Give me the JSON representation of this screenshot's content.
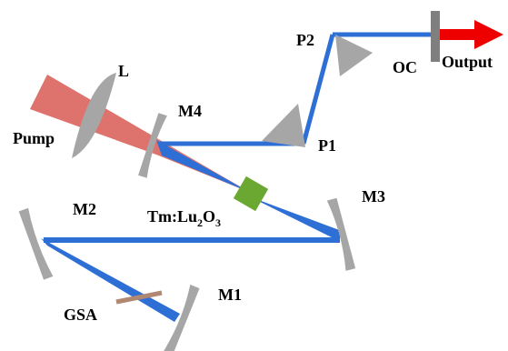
{
  "colors": {
    "beam": "#2e6fd6",
    "pump": "#d9645c",
    "optic": "#a6a6a6",
    "crystal": "#6aa832",
    "output_arrow": "#ee0000",
    "oc": "#7f7f7f",
    "gsa": "#b08872"
  },
  "labels": {
    "lens": "L",
    "pump": "Pump",
    "m4": "M4",
    "m3": "M3",
    "m2": "M2",
    "m1": "M1",
    "p1": "P1",
    "p2": "P2",
    "oc": "OC",
    "output": "Output",
    "gsa": "GSA",
    "crystal_base": "Tm:Lu",
    "crystal_sub1": "2",
    "crystal_mid": "O",
    "crystal_sub2": "3"
  }
}
